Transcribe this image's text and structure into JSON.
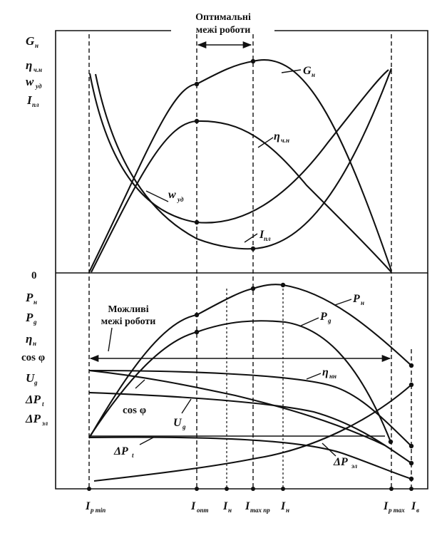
{
  "top_panel": {
    "optimal_label_line1": "Оптимальні",
    "optimal_label_line2": "межі роботи",
    "y_labels": [
      {
        "main": "G",
        "sub": "н"
      },
      {
        "main": "η",
        "sub": "ч.н"
      },
      {
        "main": "w",
        "sub": "уд"
      },
      {
        "main": "I",
        "sub": "пл"
      }
    ],
    "zero_label": "0",
    "curve_labels": {
      "G": {
        "main": "G",
        "sub": "н"
      },
      "eta": {
        "main": "η",
        "sub": "ч.н"
      },
      "w": {
        "main": "w",
        "sub": "уд"
      },
      "I": {
        "main": "I",
        "sub": "пл"
      }
    }
  },
  "bottom_panel": {
    "possible_label_line1": "Можливі",
    "possible_label_line2": "межі роботи",
    "y_labels": [
      {
        "main": "P",
        "sub": "н"
      },
      {
        "main": "P",
        "sub": "g"
      },
      {
        "main": "η",
        "sub": "н"
      },
      {
        "main": "cos φ",
        "sub": ""
      },
      {
        "main": "U",
        "sub": "g"
      },
      {
        "main": "ΔP",
        "sub": "t"
      },
      {
        "main": "ΔP",
        "sub": "эл"
      }
    ],
    "curve_labels": {
      "Pn": {
        "main": "P",
        "sub": "н"
      },
      "Pg": {
        "main": "P",
        "sub": "g"
      },
      "eta": {
        "main": "η",
        "sub": "нн"
      },
      "cos": {
        "main": "cos φ",
        "sub": ""
      },
      "Ug": {
        "main": "U",
        "sub": "g"
      },
      "dPt": {
        "main": "ΔP",
        "sub": "t"
      },
      "dPel": {
        "main": "ΔP",
        "sub": "эл"
      }
    }
  },
  "x_axis_labels": [
    {
      "main": "I",
      "sub": "р min"
    },
    {
      "main": "I",
      "sub": "опт"
    },
    {
      "main": "I",
      "sub": "н"
    },
    {
      "main": "I",
      "sub": "max пр"
    },
    {
      "main": "I",
      "sub": "н"
    },
    {
      "main": "I",
      "sub": "р max"
    },
    {
      "main": "I",
      "sub": "в"
    }
  ]
}
